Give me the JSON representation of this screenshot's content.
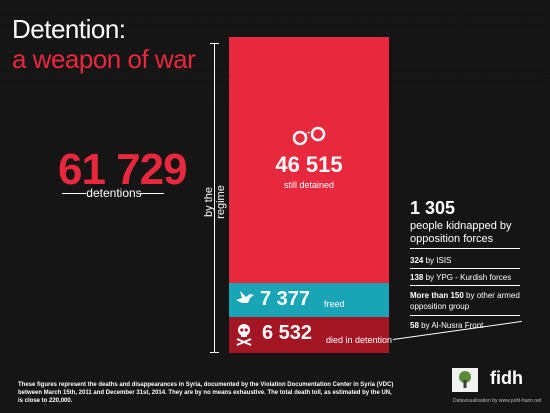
{
  "title": {
    "line1": "Detention:",
    "line2": "a weapon of war"
  },
  "total": {
    "value": "61 729",
    "label": "detentions"
  },
  "axis_label": "by the regime",
  "chart_data": {
    "type": "bar",
    "stacked": true,
    "orientation": "vertical",
    "categories": [
      "still detained",
      "freed",
      "died in detention"
    ],
    "values": [
      46515,
      7377,
      6532
    ],
    "total": 61729,
    "colors": [
      "#e8283c",
      "#1aa5b6",
      "#a41623"
    ],
    "segments": [
      {
        "value_label": "46 515",
        "label": "still detained",
        "icon": "handcuffs-icon",
        "color": "#e8283c"
      },
      {
        "value_label": "7 377",
        "label": "freed",
        "icon": "dove-icon",
        "color": "#1aa5b6"
      },
      {
        "value_label": "6 532",
        "label": "died in detention",
        "icon": "skull-icon",
        "color": "#a41623"
      }
    ]
  },
  "kidnapped": {
    "value": "1 305",
    "label": "people kidnapped by opposition forces",
    "items": [
      {
        "count": "324",
        "text": " by ISIS"
      },
      {
        "count": "138",
        "text": " by YPG - Kurdish forces"
      },
      {
        "count": "More than 150",
        "text": " by other armed opposition group"
      },
      {
        "count": "58",
        "text": " by Al-Nusra Front"
      }
    ]
  },
  "footnote": "These figures represent the deaths and disappearances in Syria, documented by the Violation Documentation Center in Syria (VDC) between March 15th, 2011 and December 31st, 2014. They are by no means exhaustive. The total death toll, as estimated by the UN, is close to 220,000.",
  "logos": {
    "fidh": "fidh"
  },
  "credit": "Datavisualisation by www.pohl-hann.net"
}
